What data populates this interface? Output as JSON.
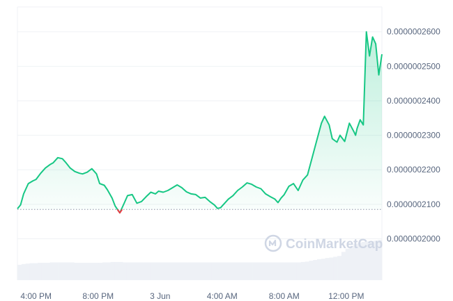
{
  "watermark": "CoinMarketCap",
  "colors": {
    "up_line": "#16c784",
    "down_line": "#ea3943",
    "up_fill": "#16c784",
    "grid": "#eff2f5",
    "baseline": "#8a93a6",
    "axis_text": "#58667e",
    "volume": "#eef1f6"
  },
  "chart_data": {
    "type": "area",
    "title": "",
    "xlabel": "",
    "ylabel": "",
    "x_ticks": [
      "4:00 PM",
      "8:00 PM",
      "3 Jun",
      "4:00 AM",
      "8:00 AM",
      "12:00 PM"
    ],
    "x_tick_hours": [
      16,
      20,
      24,
      28,
      32,
      36
    ],
    "y_ticks": [
      "0.0000002000",
      "0.0000002100",
      "0.0000002200",
      "0.0000002300",
      "0.0000002400",
      "0.0000002500",
      "0.0000002600"
    ],
    "y_tick_values": [
      2e-07,
      2.1e-07,
      2.2e-07,
      2.3e-07,
      2.4e-07,
      2.5e-07,
      2.6e-07
    ],
    "ylim": [
      1.88e-07,
      2.672e-07
    ],
    "baseline_value": 2.085e-07,
    "grid": true,
    "series": [
      {
        "hours": [
          14.8,
          15.0,
          15.2,
          15.5,
          15.8,
          16.0,
          16.3,
          16.6,
          16.9,
          17.1,
          17.4,
          17.7,
          17.9,
          18.2,
          18.5,
          18.8,
          19.0,
          19.3,
          19.6,
          19.9,
          20.1,
          20.4,
          20.6,
          20.9,
          21.1,
          21.4,
          21.7,
          21.9,
          22.2,
          22.5,
          22.8,
          23.1,
          23.4,
          23.7,
          23.9,
          24.2,
          24.5,
          24.8,
          25.1,
          25.4,
          25.7,
          26.0,
          26.3,
          26.6,
          26.9,
          27.2,
          27.5,
          27.7,
          27.9,
          28.1,
          28.4,
          28.7,
          29.0,
          29.3,
          29.6,
          29.9,
          30.2,
          30.5,
          30.8,
          31.1,
          31.4,
          31.6,
          31.8,
          32.0,
          32.3,
          32.6,
          32.9,
          33.2,
          33.5,
          33.8,
          34.1,
          34.4,
          34.6,
          34.9,
          35.1,
          35.4,
          35.6,
          35.9,
          36.2,
          36.5,
          36.6,
          36.7,
          36.9,
          37.1,
          37.3,
          37.5,
          37.7,
          37.9,
          38.1,
          38.3
        ],
        "values": [
          2.087e-07,
          2.098e-07,
          2.13e-07,
          2.16e-07,
          2.168e-07,
          2.172e-07,
          2.19e-07,
          2.205e-07,
          2.215e-07,
          2.22e-07,
          2.235e-07,
          2.232e-07,
          2.222e-07,
          2.205e-07,
          2.195e-07,
          2.19e-07,
          2.188e-07,
          2.193e-07,
          2.203e-07,
          2.188e-07,
          2.16e-07,
          2.155e-07,
          2.142e-07,
          2.118e-07,
          2.095e-07,
          2.075e-07,
          2.105e-07,
          2.125e-07,
          2.128e-07,
          2.103e-07,
          2.108e-07,
          2.122e-07,
          2.135e-07,
          2.13e-07,
          2.138e-07,
          2.135e-07,
          2.14e-07,
          2.148e-07,
          2.156e-07,
          2.148e-07,
          2.136e-07,
          2.13e-07,
          2.128e-07,
          2.118e-07,
          2.12e-07,
          2.108e-07,
          2.098e-07,
          2.088e-07,
          2.09e-07,
          2.1e-07,
          2.115e-07,
          2.125e-07,
          2.14e-07,
          2.15e-07,
          2.162e-07,
          2.158e-07,
          2.15e-07,
          2.145e-07,
          2.13e-07,
          2.122e-07,
          2.115e-07,
          2.105e-07,
          2.118e-07,
          2.128e-07,
          2.152e-07,
          2.16e-07,
          2.14e-07,
          2.17e-07,
          2.185e-07,
          2.235e-07,
          2.285e-07,
          2.335e-07,
          2.355e-07,
          2.33e-07,
          2.29e-07,
          2.28e-07,
          2.3e-07,
          2.282e-07,
          2.335e-07,
          2.31e-07,
          2.3e-07,
          2.32e-07,
          2.345e-07,
          2.33e-07,
          2.6e-07,
          2.53e-07,
          2.585e-07,
          2.565e-07,
          2.475e-07,
          2.535e-07
        ]
      }
    ],
    "volume_values": [
      0.38,
      0.4,
      0.41,
      0.42,
      0.42,
      0.43,
      0.43,
      0.43,
      0.44,
      0.44,
      0.44,
      0.44,
      0.44,
      0.44,
      0.43,
      0.43,
      0.43,
      0.43,
      0.43,
      0.43,
      0.43,
      0.44,
      0.44,
      0.45,
      0.45,
      0.45,
      0.44,
      0.44,
      0.44,
      0.44,
      0.44,
      0.44,
      0.44,
      0.44,
      0.44,
      0.44,
      0.44,
      0.44,
      0.44,
      0.44,
      0.44,
      0.44,
      0.44,
      0.44,
      0.44,
      0.44,
      0.44,
      0.44,
      0.44,
      0.44,
      0.44,
      0.44,
      0.44,
      0.44,
      0.44,
      0.44,
      0.44,
      0.44,
      0.44,
      0.44,
      0.44,
      0.44,
      0.44,
      0.44,
      0.44,
      0.44,
      0.44,
      0.44,
      0.44,
      0.44,
      0.45,
      0.46,
      0.48,
      0.5,
      0.52,
      0.53,
      0.55,
      0.56,
      0.58,
      0.6,
      0.7,
      0.78,
      0.85,
      0.9,
      0.93,
      0.95,
      0.96,
      0.97,
      0.98,
      1.0
    ]
  }
}
